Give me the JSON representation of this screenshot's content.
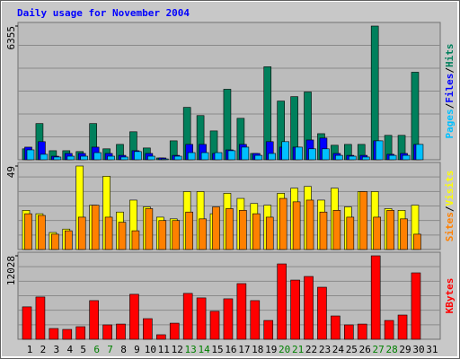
{
  "chart_data": [
    {
      "type": "bar",
      "title": "Daily usage for November 2004",
      "ylim": [
        0,
        6355
      ],
      "yticks": [
        6355
      ],
      "legend_separator": "/",
      "series": [
        {
          "name": "Hits",
          "color": "#00805c",
          "values": [
            520,
            1720,
            430,
            430,
            390,
            1720,
            520,
            730,
            1330,
            560,
            86,
            900,
            2490,
            2100,
            1370,
            3350,
            1970,
            300,
            4420,
            2790,
            3000,
            3220,
            1240,
            690,
            730,
            730,
            6355,
            1160,
            1160,
            4160,
            0
          ]
        },
        {
          "name": "Files",
          "color": "#0000ff",
          "values": [
            600,
            860,
            170,
            300,
            300,
            600,
            300,
            210,
            430,
            300,
            86,
            210,
            730,
            730,
            300,
            470,
            730,
            300,
            860,
            600,
            600,
            940,
            1030,
            300,
            210,
            210,
            900,
            260,
            300,
            730,
            0
          ]
        },
        {
          "name": "Pages",
          "color": "#00c0ff",
          "values": [
            470,
            260,
            130,
            170,
            170,
            340,
            170,
            130,
            390,
            170,
            40,
            170,
            340,
            340,
            340,
            430,
            600,
            210,
            300,
            860,
            600,
            520,
            520,
            210,
            170,
            130,
            900,
            210,
            210,
            730,
            0
          ]
        }
      ]
    },
    {
      "type": "bar",
      "ylim": [
        0,
        49
      ],
      "yticks": [
        49
      ],
      "legend_separator": "/",
      "series": [
        {
          "name": "Visits",
          "color": "#ffff00",
          "values": [
            23,
            21,
            10,
            12,
            49,
            26,
            43,
            22,
            29,
            25,
            19,
            18,
            34,
            34,
            21,
            33,
            30,
            27,
            26,
            33,
            36,
            37,
            29,
            36,
            25,
            34,
            34,
            24,
            23,
            26,
            0
          ]
        },
        {
          "name": "Sites",
          "color": "#ff8000",
          "values": [
            21,
            20,
            9,
            11,
            19,
            26,
            19,
            16,
            11,
            24,
            17,
            17,
            22,
            18,
            25,
            24,
            23,
            21,
            19,
            30,
            28,
            29,
            22,
            23,
            19,
            34,
            19,
            23,
            18,
            9,
            0
          ]
        }
      ]
    },
    {
      "type": "bar",
      "ylim": [
        0,
        12028
      ],
      "yticks": [
        12028
      ],
      "categories": [
        "1",
        "2",
        "3",
        "4",
        "5",
        "6",
        "7",
        "8",
        "9",
        "10",
        "11",
        "12",
        "13",
        "14",
        "15",
        "16",
        "17",
        "18",
        "19",
        "20",
        "21",
        "22",
        "23",
        "24",
        "25",
        "26",
        "27",
        "28",
        "29",
        "30",
        "31"
      ],
      "label_colors": [
        "#000000",
        "#000000",
        "#000000",
        "#000000",
        "#000000",
        "#008000",
        "#008000",
        "#000000",
        "#000000",
        "#000000",
        "#000000",
        "#000000",
        "#008000",
        "#008000",
        "#000000",
        "#000000",
        "#000000",
        "#000000",
        "#000000",
        "#008000",
        "#008000",
        "#000000",
        "#000000",
        "#000000",
        "#000000",
        "#000000",
        "#008000",
        "#008000",
        "#000000",
        "#000000",
        "#000000"
      ],
      "series": [
        {
          "name": "KBytes",
          "color": "#ff0000",
          "values": [
            4670,
            6090,
            1550,
            1420,
            1810,
            5570,
            2070,
            2190,
            6480,
            2970,
            650,
            2320,
            6610,
            5960,
            4030,
            5830,
            8020,
            5570,
            2710,
            10860,
            8530,
            9050,
            7500,
            3360,
            2070,
            2190,
            12028,
            2710,
            3490,
            9570,
            0
          ]
        }
      ]
    }
  ]
}
